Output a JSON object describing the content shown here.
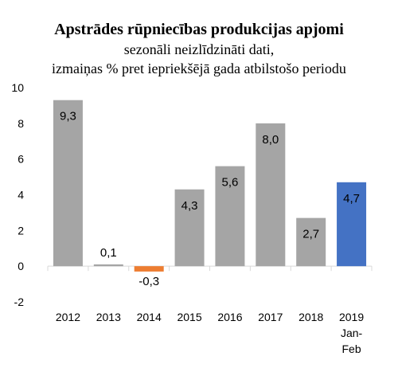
{
  "chart_data": {
    "type": "bar",
    "title": "Apstrādes rūpniecības produkcijas apjomi",
    "subtitle": [
      "sezonāli neizlīdzināti dati,",
      "izmaiņas % pret iepriekšējā gada atbilstošo periodu"
    ],
    "categories": [
      [
        "2012"
      ],
      [
        "2013"
      ],
      [
        "2014"
      ],
      [
        "2015"
      ],
      [
        "2016"
      ],
      [
        "2017"
      ],
      [
        "2018"
      ],
      [
        "2019",
        "Jan-",
        "Feb"
      ]
    ],
    "values": [
      9.3,
      0.1,
      -0.3,
      4.3,
      5.6,
      8.0,
      2.7,
      4.7
    ],
    "data_labels": [
      "9,3",
      "0,1",
      "-0,3",
      "4,3",
      "5,6",
      "8,0",
      "2,7",
      "4,7"
    ],
    "bar_colors": [
      "#a5a5a5",
      "#a5a5a5",
      "#ed7d31",
      "#a5a5a5",
      "#a5a5a5",
      "#a5a5a5",
      "#a5a5a5",
      "#4472c4"
    ],
    "ylim": [
      -2,
      10
    ],
    "yticks": [
      -2,
      0,
      2,
      4,
      6,
      8,
      10
    ],
    "grid": false,
    "legend": "none"
  }
}
